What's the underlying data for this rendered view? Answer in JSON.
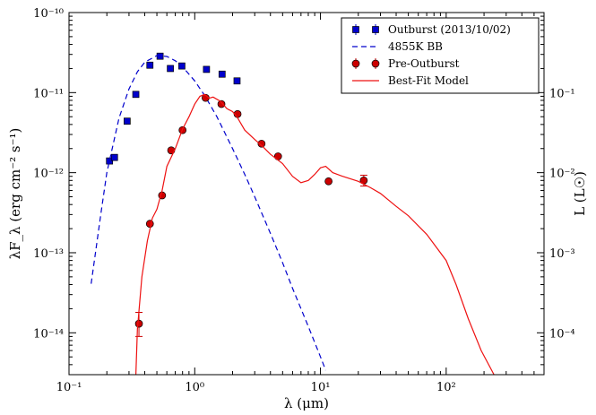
{
  "chart_data": {
    "type": "scatter",
    "xlabel": "λ (μm)",
    "ylabel": "λF_λ (erg cm⁻² s⁻¹)",
    "y2label": "L (L☉)",
    "xscale": "log",
    "yscale": "log",
    "xlim": [
      0.1,
      600
    ],
    "ylim": [
      3e-15,
      1e-10
    ],
    "y2lim": [
      3e-05,
      1.0
    ],
    "x_ticks": [
      {
        "value": 0.1,
        "label": "10⁻¹"
      },
      {
        "value": 1,
        "label": "10⁰"
      },
      {
        "value": 10,
        "label": "10¹"
      },
      {
        "value": 100,
        "label": "10²"
      }
    ],
    "y_ticks": [
      {
        "value": 1e-10,
        "label": "10⁻¹⁰"
      },
      {
        "value": 1e-11,
        "label": "10⁻¹¹"
      },
      {
        "value": 1e-12,
        "label": "10⁻¹²"
      },
      {
        "value": 1e-13,
        "label": "10⁻¹³"
      },
      {
        "value": 1e-14,
        "label": "10⁻¹⁴"
      }
    ],
    "y2_ticks": [
      {
        "value": 0.1,
        "label": "10⁻¹"
      },
      {
        "value": 0.01,
        "label": "10⁻²"
      },
      {
        "value": 0.001,
        "label": "10⁻³"
      },
      {
        "value": 0.0001,
        "label": "10⁻⁴"
      }
    ],
    "legend_position": "top-right",
    "series": [
      {
        "name": "Outburst (2013/10/02)",
        "kind": "points",
        "marker": "square",
        "color": "#0000cc",
        "x": [
          0.21,
          0.23,
          0.29,
          0.34,
          0.44,
          0.53,
          0.64,
          0.79,
          1.24,
          1.65,
          2.17
        ],
        "y": [
          1.4e-12,
          1.55e-12,
          4.4e-12,
          9.5e-12,
          2.2e-11,
          2.85e-11,
          2e-11,
          2.15e-11,
          1.95e-11,
          1.7e-11,
          1.4e-11
        ]
      },
      {
        "name": "4855K BB",
        "kind": "line",
        "dash": "dashed",
        "color": "#0000cc",
        "x": [
          0.15,
          0.18,
          0.2,
          0.25,
          0.3,
          0.35,
          0.4,
          0.5,
          0.6,
          0.7,
          0.8,
          1.0,
          1.2,
          1.5,
          2.0,
          2.5,
          3.0,
          4.0,
          5.0,
          6.0,
          8.0,
          10.0,
          11.0
        ],
        "y": [
          4.1e-14,
          3.2e-13,
          1e-12,
          4.8e-12,
          1.11e-11,
          1.82e-11,
          2.4e-11,
          2.9e-11,
          2.83e-11,
          2.5e-11,
          2.1e-11,
          1.4e-11,
          9.2e-12,
          5e-12,
          2e-12,
          9.5e-13,
          5e-13,
          1.75e-13,
          7.5e-14,
          3.6e-14,
          1.2e-14,
          5e-15,
          3.4e-15
        ]
      },
      {
        "name": "Pre-Outburst",
        "kind": "points",
        "marker": "circle",
        "color": "#cc0000",
        "x": [
          0.36,
          0.44,
          0.55,
          0.65,
          0.8,
          1.22,
          1.63,
          2.19,
          3.4,
          4.6,
          11.6,
          22.1
        ],
        "y": [
          1.3e-14,
          2.3e-13,
          5.2e-13,
          1.9e-12,
          3.4e-12,
          8.6e-12,
          7.2e-12,
          5.4e-12,
          2.3e-12,
          1.6e-12,
          7.8e-13,
          8e-13
        ],
        "yerr_upper": [
          1.8e-14,
          null,
          null,
          null,
          null,
          null,
          null,
          null,
          null,
          null,
          null,
          9.3e-13
        ],
        "yerr_lower": [
          9e-15,
          null,
          null,
          null,
          null,
          null,
          null,
          null,
          null,
          null,
          null,
          6.8e-13
        ]
      },
      {
        "name": "Best-Fit Model",
        "kind": "line",
        "dash": "solid",
        "color": "#ee1111",
        "x": [
          0.34,
          0.35,
          0.38,
          0.42,
          0.46,
          0.5,
          0.55,
          0.6,
          0.7,
          0.8,
          0.9,
          1.0,
          1.1,
          1.2,
          1.3,
          1.4,
          1.6,
          1.8,
          2.0,
          2.2,
          2.5,
          3.0,
          3.5,
          4.0,
          5.0,
          6.0,
          7.0,
          8.0,
          9.0,
          10.0,
          11.0,
          12.5,
          15.0,
          20.0,
          25.0,
          30.0,
          40.0,
          50.0,
          70.0,
          100.0,
          120.0,
          150.0,
          190.0,
          240.0
        ],
        "y": [
          3e-15,
          1.1e-14,
          5e-14,
          1.4e-13,
          2.7e-13,
          3.5e-13,
          6e-13,
          1.2e-12,
          2e-12,
          3.5e-12,
          5e-12,
          7.2e-12,
          9e-12,
          9.5e-12,
          8.5e-12,
          8.8e-12,
          7.8e-12,
          6.3e-12,
          5.8e-12,
          4.8e-12,
          3.4e-12,
          2.6e-12,
          2.1e-12,
          1.7e-12,
          1.3e-12,
          9e-13,
          7.5e-13,
          8e-13,
          9.5e-13,
          1.15e-12,
          1.2e-12,
          1e-12,
          9e-13,
          7.8e-13,
          6.5e-13,
          5.5e-13,
          3.8e-13,
          2.9e-13,
          1.7e-13,
          8e-14,
          4e-14,
          1.5e-14,
          6e-15,
          3e-15
        ]
      }
    ]
  }
}
